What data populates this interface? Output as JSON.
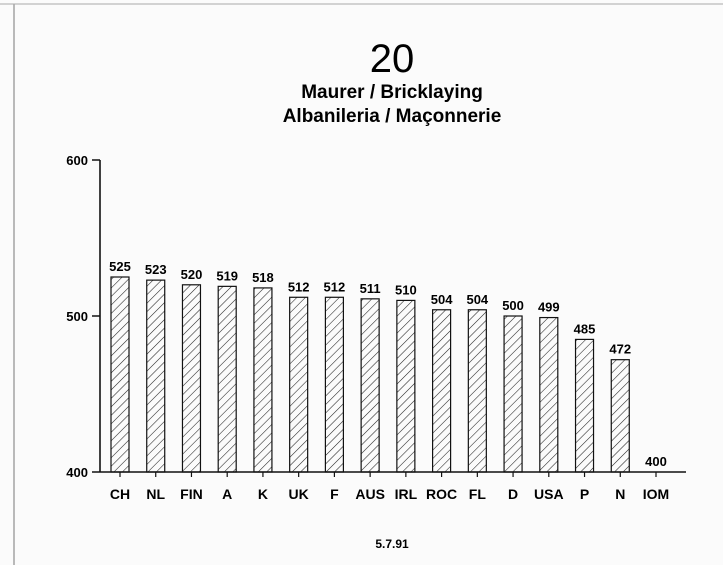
{
  "chart_data": {
    "type": "bar",
    "title": "20",
    "subtitle_lines": [
      "Maurer / Bricklaying",
      "Albanileria / Maçonnerie"
    ],
    "categories": [
      "CH",
      "NL",
      "FIN",
      "A",
      "K",
      "UK",
      "F",
      "AUS",
      "IRL",
      "ROC",
      "FL",
      "D",
      "USA",
      "P",
      "N",
      "IOM"
    ],
    "values": [
      525,
      523,
      520,
      519,
      518,
      512,
      512,
      511,
      510,
      504,
      504,
      500,
      499,
      485,
      472,
      400
    ],
    "data_labels": [
      "525",
      "523",
      "520",
      "519",
      "518",
      "512",
      "512",
      "511",
      "510",
      "504",
      "504",
      "500",
      "499",
      "485",
      "472",
      "400"
    ],
    "ylim": [
      400,
      600
    ],
    "yticks": [
      400,
      500,
      600
    ],
    "ytick_labels": [
      "400",
      "500",
      "600"
    ],
    "xlabel": "",
    "ylabel": "",
    "grid": false,
    "bar_fill": "diagonal-hatch",
    "footer": "5.7.91"
  },
  "colors": {
    "ink": "#111111",
    "background": "#fbfbfb"
  }
}
